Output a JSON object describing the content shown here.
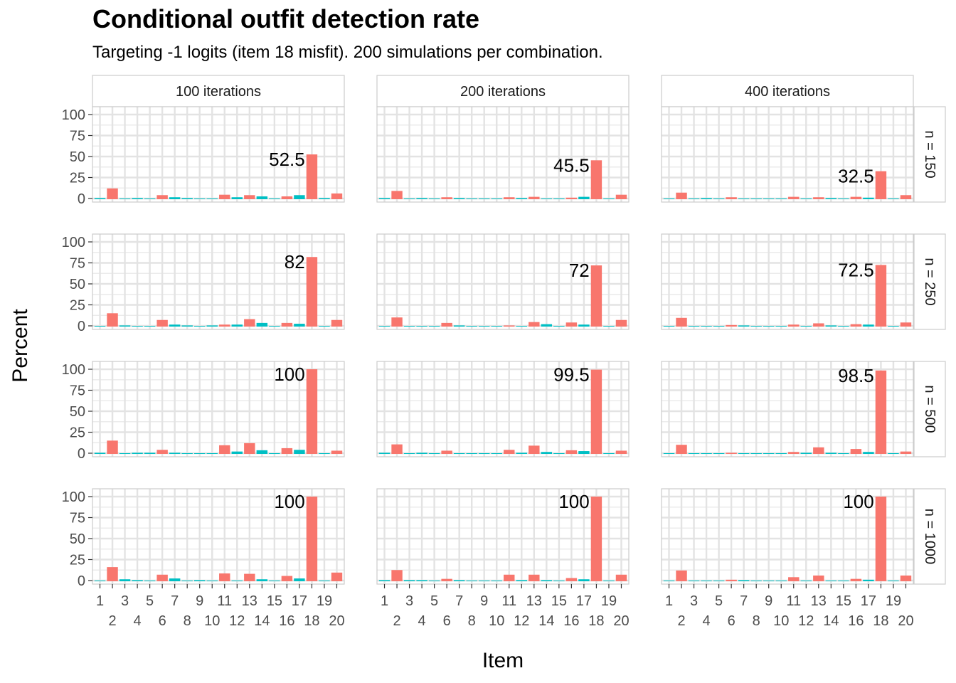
{
  "title": "Conditional outfit detection rate",
  "subtitle": "Targeting -1 logits (item 18 misfit). 200 simulations per combination.",
  "colors": {
    "flagged_true": "#F8766D",
    "flagged_false": "#00BFC4"
  },
  "chart_data": {
    "type": "bar",
    "xlabel": "Item",
    "ylabel": "Percent",
    "ylim": [
      0,
      100
    ],
    "y_ticks": [
      0,
      25,
      50,
      75,
      100
    ],
    "grid": true,
    "legend": "none",
    "facet_columns": [
      "100 iterations",
      "200 iterations",
      "400 iterations"
    ],
    "facet_rows": [
      "n = 150",
      "n = 250",
      "n = 500",
      "n = 1000"
    ],
    "categories": [
      "1",
      "2",
      "3",
      "4",
      "5",
      "6",
      "7",
      "8",
      "9",
      "10",
      "11",
      "12",
      "13",
      "14",
      "15",
      "16",
      "17",
      "18",
      "19",
      "20"
    ],
    "red_items": [
      "2",
      "6",
      "11",
      "13",
      "16",
      "18",
      "20"
    ],
    "panels": [
      {
        "row": "n = 150",
        "col": "100 iterations",
        "label": "52.5",
        "values": [
          0.5,
          12,
          0,
          0.5,
          0,
          4,
          1.5,
          0.5,
          0,
          0,
          4.5,
          1.5,
          4,
          2.5,
          0,
          2.5,
          4,
          52.5,
          0.5,
          6
        ]
      },
      {
        "row": "n = 150",
        "col": "200 iterations",
        "label": "45.5",
        "values": [
          0.5,
          9,
          0,
          0.5,
          0,
          1.5,
          0.5,
          0,
          0,
          0,
          1.5,
          0.5,
          2,
          0,
          0,
          1,
          2,
          45.5,
          0,
          4.5
        ]
      },
      {
        "row": "n = 150",
        "col": "400 iterations",
        "label": "32.5",
        "values": [
          0,
          7,
          0,
          0.5,
          0,
          1.5,
          0,
          0,
          0,
          0,
          2,
          0,
          1.5,
          0.5,
          0,
          2,
          1,
          32.5,
          0,
          4
        ]
      },
      {
        "row": "n = 250",
        "col": "100 iterations",
        "label": "82",
        "values": [
          0,
          15,
          0.5,
          0,
          0,
          7,
          1.5,
          0.5,
          0,
          0.5,
          1.5,
          1.5,
          8,
          3.5,
          0,
          3.5,
          2.5,
          82,
          0,
          7
        ]
      },
      {
        "row": "n = 250",
        "col": "200 iterations",
        "label": "72",
        "values": [
          0,
          10,
          0,
          0,
          0,
          3.5,
          0.5,
          0,
          0,
          0,
          0.5,
          0,
          4.5,
          2,
          0,
          4,
          1.5,
          72,
          0,
          7
        ]
      },
      {
        "row": "n = 250",
        "col": "400 iterations",
        "label": "72.5",
        "values": [
          0,
          9.5,
          0,
          0,
          0,
          1,
          0.5,
          0,
          0,
          0,
          1.5,
          0,
          3,
          0.5,
          0,
          2,
          1.5,
          72.5,
          0,
          4
        ]
      },
      {
        "row": "n = 500",
        "col": "100 iterations",
        "label": "100",
        "values": [
          0.5,
          15,
          0,
          0.5,
          0.5,
          4,
          0.5,
          0,
          0,
          0,
          9.5,
          2,
          12,
          3.5,
          0,
          6,
          4,
          100,
          0,
          3
        ]
      },
      {
        "row": "n = 500",
        "col": "200 iterations",
        "label": "99.5",
        "values": [
          0.5,
          10.5,
          0,
          0.5,
          0,
          3,
          0,
          0,
          0,
          0,
          4,
          0.5,
          9,
          1.5,
          0,
          3.5,
          2.5,
          99.5,
          0,
          3
        ]
      },
      {
        "row": "n = 500",
        "col": "400 iterations",
        "label": "98.5",
        "values": [
          0,
          10,
          0,
          0,
          0,
          0.5,
          0,
          0,
          0,
          0,
          1.5,
          0.5,
          7,
          0.5,
          0,
          5,
          1.5,
          98.5,
          0,
          2
        ]
      },
      {
        "row": "n = 1000",
        "col": "100 iterations",
        "label": "100",
        "values": [
          0,
          16,
          1.5,
          0.5,
          0,
          7,
          2.5,
          0,
          0.5,
          0,
          8.5,
          0,
          8,
          1.5,
          0,
          5.5,
          2.5,
          100,
          0,
          9.5
        ]
      },
      {
        "row": "n = 1000",
        "col": "200 iterations",
        "label": "100",
        "values": [
          0.5,
          12.5,
          0.5,
          0.5,
          0,
          2,
          0.5,
          0,
          0,
          0,
          7,
          0.5,
          7,
          0.5,
          0,
          3,
          1.5,
          100,
          0,
          7
        ]
      },
      {
        "row": "n = 1000",
        "col": "400 iterations",
        "label": "100",
        "values": [
          0,
          12,
          0,
          0,
          0,
          1,
          0.5,
          0,
          0,
          0,
          4,
          0,
          6,
          0,
          0,
          2,
          1,
          100,
          0,
          6
        ]
      }
    ]
  }
}
